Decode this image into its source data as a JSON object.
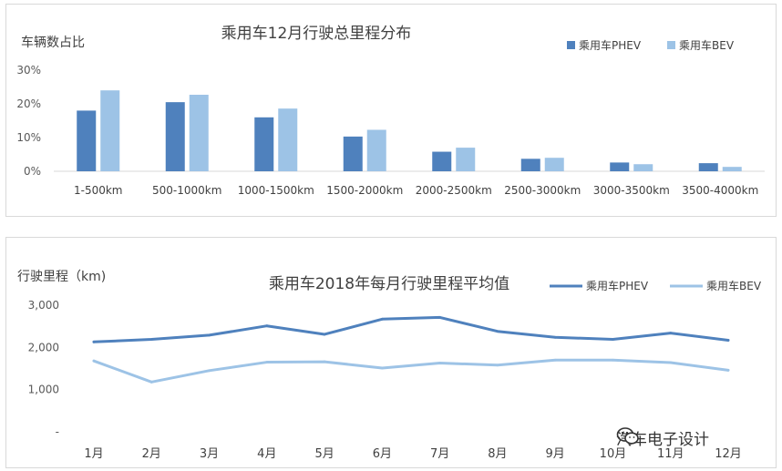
{
  "chart_data": [
    {
      "type": "bar",
      "title": "乘用车12月行驶总里程分布",
      "ylabel": "车辆数占比",
      "xlabel": "",
      "ylim": [
        0,
        30
      ],
      "yticks": [
        "0%",
        "10%",
        "20%",
        "30%"
      ],
      "categories": [
        "1-500km",
        "500-1000km",
        "1000-1500km",
        "1500-2000km",
        "2000-2500km",
        "2500-3000km",
        "3000-3500km",
        "3500-4000km"
      ],
      "series": [
        {
          "name": "乘用车PHEV",
          "color": "#4f81bd",
          "values": [
            18,
            20.5,
            16,
            10.3,
            5.8,
            3.7,
            2.6,
            2.4
          ]
        },
        {
          "name": "乘用车BEV",
          "color": "#9dc3e6",
          "values": [
            24,
            22.7,
            18.6,
            12.3,
            7,
            4,
            2.1,
            1.3
          ]
        }
      ],
      "legend_position": "top-right",
      "grid": false
    },
    {
      "type": "line",
      "title": "乘用车2018年每月行驶里程平均值",
      "ylabel": "行驶里程（km)",
      "xlabel": "",
      "ylim": [
        0,
        3000
      ],
      "yticks": [
        "-",
        "1,000",
        "2,000",
        "3,000"
      ],
      "categories": [
        "1月",
        "2月",
        "3月",
        "4月",
        "5月",
        "6月",
        "7月",
        "8月",
        "9月",
        "10月",
        "11月",
        "12月"
      ],
      "series": [
        {
          "name": "乘用车PHEV",
          "color": "#4f81bd",
          "values": [
            2130,
            2190,
            2290,
            2510,
            2310,
            2670,
            2710,
            2380,
            2240,
            2190,
            2340,
            2170
          ]
        },
        {
          "name": "乘用车BEV",
          "color": "#9dc3e6",
          "values": [
            1680,
            1180,
            1450,
            1650,
            1660,
            1510,
            1630,
            1580,
            1700,
            1700,
            1640,
            1460
          ]
        }
      ],
      "legend_position": "top-right",
      "grid": false
    }
  ],
  "watermark": {
    "text": "汽车电子设计",
    "icon": "wechat-icon"
  }
}
